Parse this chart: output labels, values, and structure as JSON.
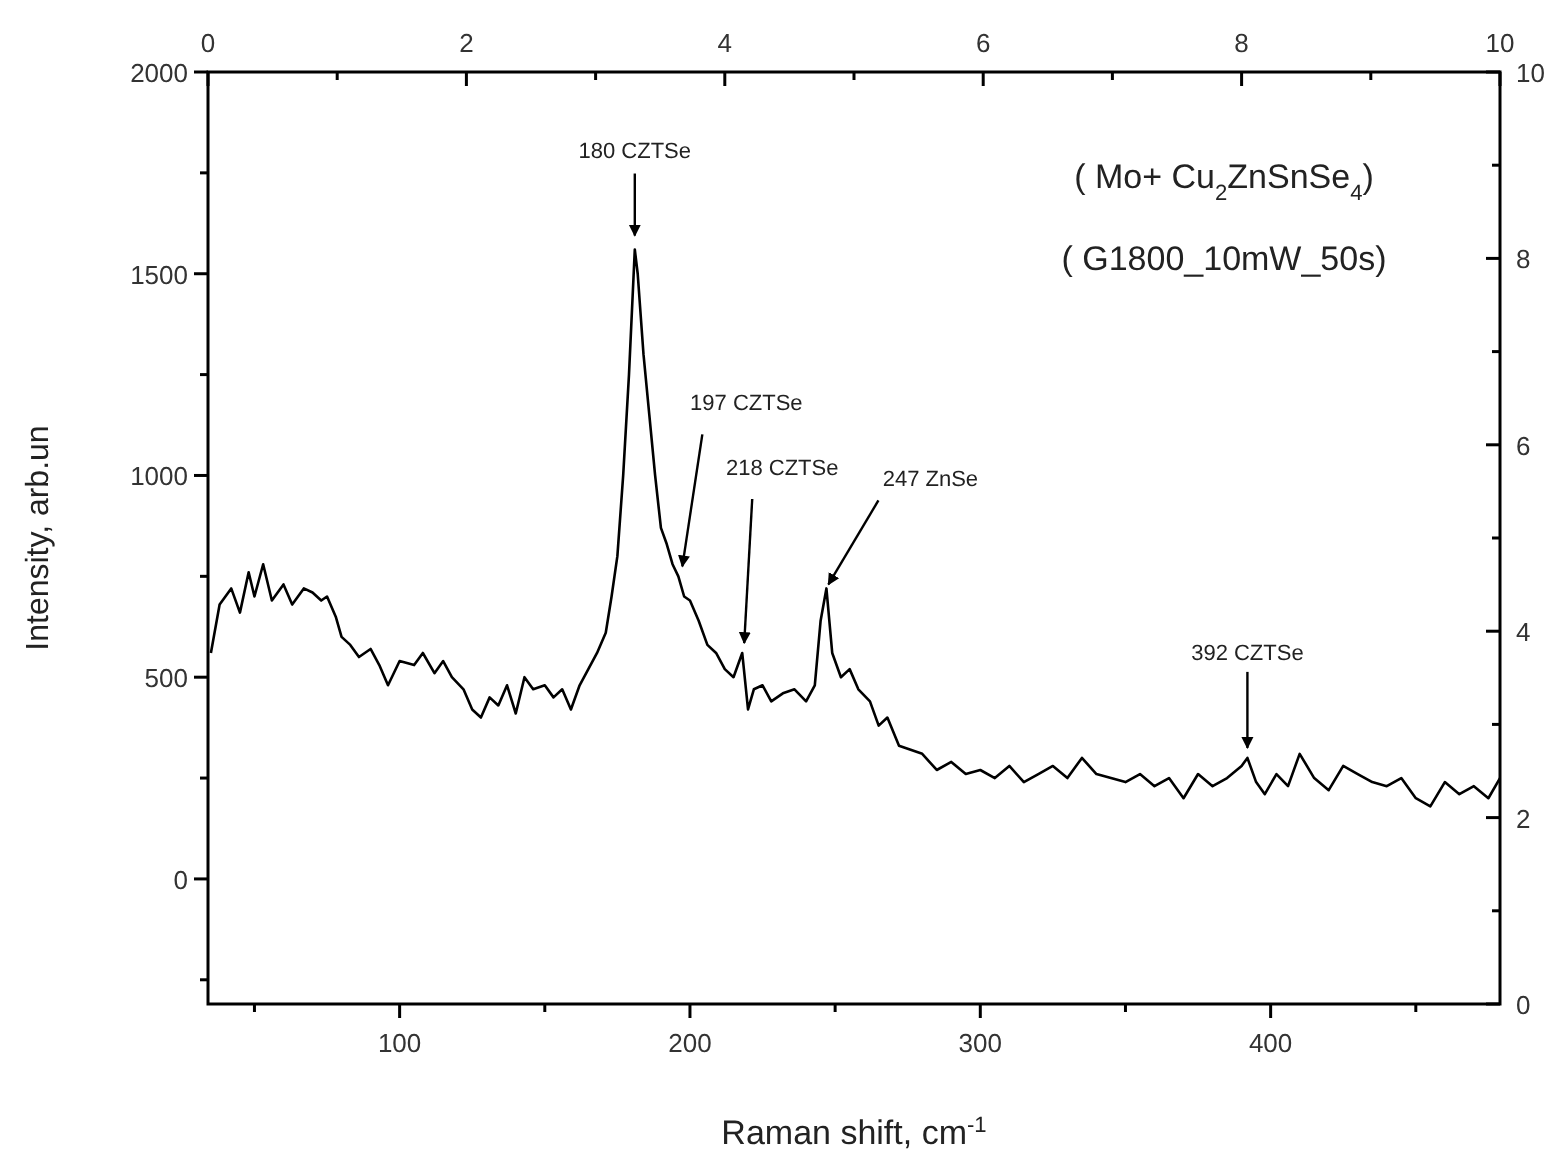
{
  "chart_data": {
    "type": "line",
    "title": "( Mo+ Cu$_{2}$ZnSnSe$_{4}$)",
    "subtitle": "( G1800_10mW_50s)",
    "xlabel": "Raman shift, cm$^{-1}$",
    "ylabel": "Intensity, arb.un",
    "xlim": [
      34,
      479
    ],
    "xticks": [
      {
        "value": 50,
        "label": null
      },
      100,
      {
        "value": 150,
        "label": null
      },
      200,
      {
        "value": 250,
        "label": null
      },
      300,
      {
        "value": 350,
        "label": null
      },
      400,
      {
        "value": 450,
        "label": null
      }
    ],
    "ylim": [
      -310,
      2000
    ],
    "yticks": [
      {
        "value": -250,
        "label": null
      },
      0,
      {
        "value": 250,
        "label": null
      },
      500,
      {
        "value": 750,
        "label": null
      },
      1000,
      {
        "value": 1250,
        "label": null
      },
      1500,
      {
        "value": 1750,
        "label": null
      },
      2000
    ],
    "x2lim": [
      0,
      10
    ],
    "x2ticks": [
      0,
      {
        "value": 1,
        "label": null
      },
      2,
      {
        "value": 3,
        "label": null
      },
      4,
      {
        "value": 5,
        "label": null
      },
      6,
      {
        "value": 7,
        "label": null
      },
      8,
      {
        "value": 9,
        "label": null
      },
      10
    ],
    "y2lim": [
      0,
      10
    ],
    "y2ticks": [
      0,
      {
        "value": 1,
        "label": null
      },
      2,
      {
        "value": 3,
        "label": null
      },
      4,
      {
        "value": 5,
        "label": null
      },
      6,
      {
        "value": 7,
        "label": null
      },
      8,
      {
        "value": 9,
        "label": null
      },
      10
    ],
    "x": [
      35,
      38,
      42,
      45,
      48,
      50,
      53,
      56,
      60,
      63,
      67,
      70,
      73,
      75,
      78,
      80,
      83,
      86,
      90,
      93,
      96,
      100,
      105,
      108,
      112,
      115,
      118,
      122,
      125,
      128,
      131,
      134,
      137,
      140,
      143,
      146,
      150,
      153,
      156,
      159,
      162,
      165,
      168,
      171,
      173,
      175,
      177,
      179,
      181,
      182,
      184,
      186,
      188,
      190,
      192,
      194,
      196,
      198,
      200,
      203,
      206,
      209,
      212,
      215,
      218,
      220,
      222,
      225,
      228,
      232,
      236,
      240,
      243,
      245,
      247,
      249,
      252,
      255,
      258,
      262,
      265,
      268,
      272,
      276,
      280,
      285,
      290,
      295,
      300,
      305,
      310,
      315,
      320,
      325,
      330,
      335,
      340,
      345,
      350,
      355,
      360,
      365,
      370,
      375,
      380,
      385,
      390,
      392,
      395,
      398,
      402,
      406,
      410,
      415,
      420,
      425,
      430,
      435,
      440,
      445,
      450,
      455,
      460,
      465,
      470,
      475,
      479
    ],
    "series": [
      {
        "color": "#000000",
        "values": [
          560,
          680,
          720,
          660,
          760,
          700,
          780,
          690,
          730,
          680,
          720,
          710,
          690,
          700,
          650,
          600,
          580,
          550,
          570,
          530,
          480,
          540,
          530,
          560,
          510,
          540,
          500,
          470,
          420,
          400,
          450,
          430,
          480,
          410,
          500,
          470,
          480,
          450,
          470,
          420,
          480,
          520,
          560,
          610,
          700,
          800,
          1000,
          1250,
          1560,
          1500,
          1300,
          1150,
          1000,
          870,
          830,
          780,
          750,
          700,
          690,
          640,
          580,
          560,
          520,
          500,
          560,
          420,
          470,
          480,
          440,
          460,
          470,
          440,
          480,
          640,
          720,
          560,
          500,
          520,
          470,
          440,
          380,
          400,
          330,
          320,
          310,
          270,
          290,
          260,
          270,
          250,
          280,
          240,
          260,
          280,
          250,
          300,
          260,
          250,
          240,
          260,
          230,
          250,
          200,
          260,
          230,
          250,
          280,
          300,
          240,
          210,
          260,
          230,
          310,
          250,
          220,
          280,
          260,
          240,
          230,
          250,
          200,
          180,
          240,
          210,
          230,
          200,
          250
        ]
      }
    ],
    "annotations": [
      {
        "text": "180 CZTSe",
        "x": 181,
        "y": 1560
      },
      {
        "text": "197 CZTSe",
        "x": 196,
        "y": 750
      },
      {
        "text": "218 CZTSe",
        "x": 218,
        "y": 560
      },
      {
        "text": "247 ZnSe",
        "x": 247,
        "y": 720
      },
      {
        "text": "392 CZTSe",
        "x": 392,
        "y": 300
      }
    ]
  }
}
